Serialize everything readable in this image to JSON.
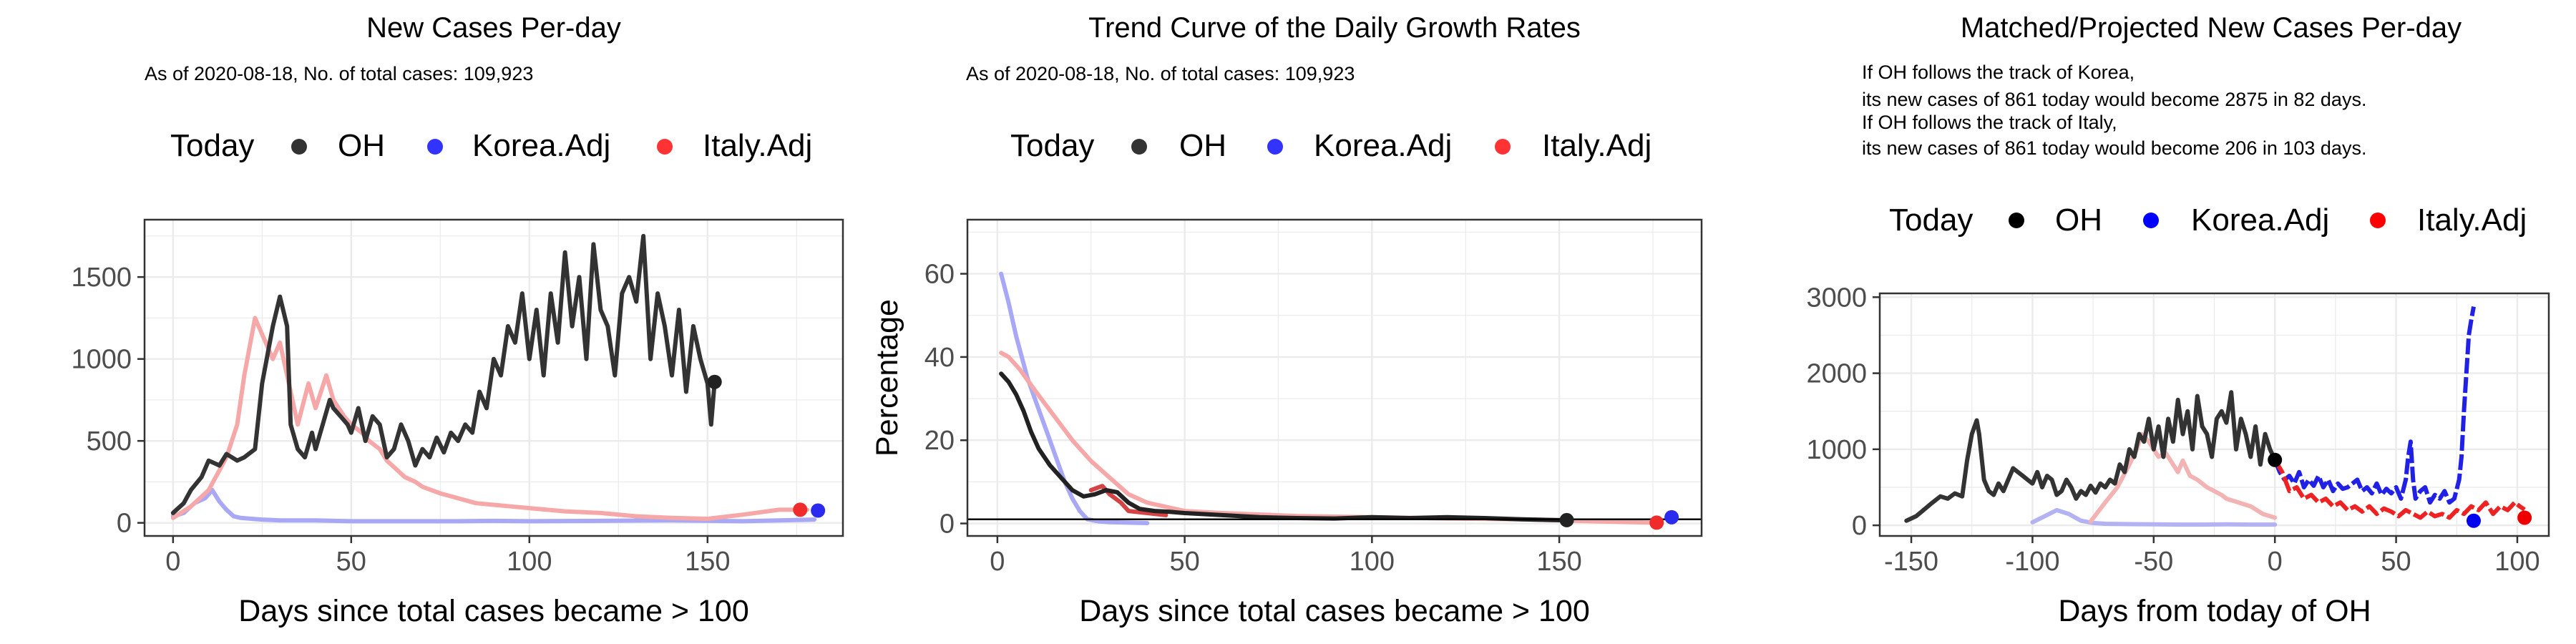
{
  "chart_data": [
    {
      "type": "line",
      "title": "New Cases Per-day",
      "subtitle": "As of 2020-08-18, No. of total cases: 109,923",
      "xlabel": "Days since total cases became > 100",
      "ylabel": "",
      "xlim": [
        -8,
        188
      ],
      "ylim": [
        -80,
        1850
      ],
      "xticks": [
        0,
        50,
        100,
        150
      ],
      "yticks": [
        0,
        500,
        1000,
        1500
      ],
      "grid": true,
      "legend": {
        "position": "top",
        "title": "Today",
        "entries": [
          "OH",
          "Korea.Adj",
          "Italy.Adj"
        ]
      },
      "series": [
        {
          "name": "Korea.Adj",
          "color": "#a8a8f6",
          "x": [
            0,
            3,
            6,
            9,
            11,
            13,
            15,
            17,
            19,
            22,
            25,
            30,
            40,
            50,
            60,
            70,
            80,
            90,
            100,
            120,
            140,
            160,
            170,
            180
          ],
          "y": [
            40,
            60,
            120,
            150,
            200,
            130,
            80,
            40,
            30,
            25,
            20,
            15,
            15,
            10,
            10,
            10,
            10,
            12,
            10,
            12,
            15,
            10,
            15,
            20
          ]
        },
        {
          "name": "Italy.Adj",
          "color": "#f6a8a8",
          "x": [
            0,
            5,
            10,
            15,
            18,
            20,
            23,
            25,
            28,
            30,
            33,
            35,
            38,
            40,
            43,
            45,
            48,
            50,
            53,
            55,
            58,
            60,
            63,
            65,
            68,
            70,
            75,
            80,
            85,
            90,
            95,
            100,
            110,
            120,
            130,
            140,
            150,
            160,
            170,
            178
          ],
          "y": [
            30,
            100,
            200,
            400,
            600,
            900,
            1250,
            1150,
            1000,
            1100,
            800,
            600,
            850,
            700,
            900,
            750,
            650,
            600,
            550,
            500,
            450,
            380,
            320,
            280,
            250,
            220,
            180,
            150,
            120,
            110,
            100,
            90,
            70,
            60,
            40,
            30,
            25,
            50,
            80,
            80
          ]
        },
        {
          "name": "OH",
          "color": "#333333",
          "x": [
            0,
            3,
            5,
            8,
            10,
            13,
            15,
            18,
            20,
            23,
            25,
            28,
            30,
            32,
            33,
            35,
            37,
            39,
            40,
            42,
            44,
            45,
            47,
            49,
            50,
            52,
            54,
            56,
            58,
            60,
            62,
            64,
            66,
            68,
            70,
            72,
            74,
            76,
            78,
            80,
            82,
            84,
            86,
            88,
            90,
            92,
            94,
            96,
            98,
            100,
            102,
            104,
            106,
            108,
            110,
            112,
            114,
            116,
            118,
            120,
            122,
            124,
            126,
            128,
            130,
            132,
            134,
            136,
            138,
            140,
            142,
            144,
            146,
            148,
            150,
            151,
            152
          ],
          "y": [
            60,
            120,
            200,
            280,
            380,
            350,
            420,
            380,
            400,
            450,
            850,
            1200,
            1380,
            1200,
            600,
            450,
            400,
            550,
            450,
            600,
            750,
            700,
            650,
            600,
            550,
            700,
            500,
            650,
            600,
            400,
            450,
            600,
            500,
            350,
            450,
            400,
            520,
            430,
            550,
            500,
            600,
            550,
            800,
            700,
            1000,
            900,
            1200,
            1100,
            1400,
            1000,
            1300,
            900,
            1400,
            1100,
            1650,
            1200,
            1500,
            1000,
            1700,
            1300,
            1200,
            900,
            1400,
            1500,
            1350,
            1750,
            1000,
            1400,
            1200,
            900,
            1300,
            800,
            1200,
            1000,
            850,
            600,
            860
          ]
        }
      ],
      "today_points": [
        {
          "series": "Italy.Adj",
          "x": 176,
          "y": 80
        },
        {
          "series": "Korea.Adj",
          "x": 181,
          "y": 75
        },
        {
          "series": "OH",
          "x": 152,
          "y": 860
        }
      ]
    },
    {
      "type": "line",
      "title": "Trend Curve of the Daily Growth Rates",
      "subtitle": "As of 2020-08-18, No. of total cases: 109,923",
      "xlabel": "Days since total cases became > 100",
      "ylabel": "Percentage",
      "xlim": [
        -8,
        188
      ],
      "ylim": [
        -3,
        73
      ],
      "xticks": [
        0,
        50,
        100,
        150
      ],
      "yticks": [
        0,
        20,
        40,
        60
      ],
      "grid": true,
      "hline": 1,
      "legend": {
        "position": "top",
        "title": "Today",
        "entries": [
          "OH",
          "Korea.Adj",
          "Italy.Adj"
        ]
      },
      "series": [
        {
          "name": "Korea.Adj",
          "color": "#a8a8f6",
          "x": [
            1,
            3,
            5,
            8,
            10,
            12,
            14,
            16,
            18,
            20,
            22,
            24,
            27,
            30,
            35,
            40
          ],
          "y": [
            60,
            53,
            45,
            35,
            30,
            25,
            20,
            15,
            10,
            6,
            3,
            1,
            0.5,
            0.3,
            0.2,
            0.1
          ]
        },
        {
          "name": "Italy.Adj",
          "color": "#f6a8a8",
          "x": [
            1,
            3,
            6,
            10,
            15,
            20,
            25,
            30,
            35,
            40,
            50,
            60,
            80,
            100,
            120,
            140,
            160,
            175
          ],
          "y": [
            41,
            40,
            37,
            32,
            26,
            20,
            15,
            11,
            7,
            5,
            3,
            2.5,
            1.8,
            1.5,
            1.2,
            1,
            0.5,
            0.2
          ]
        },
        {
          "name": "Italy.Adj",
          "color": "#d44444",
          "x": [
            25,
            28,
            30,
            33,
            35,
            40,
            45
          ],
          "y": [
            8,
            9,
            7,
            5,
            3,
            2.5,
            2
          ]
        },
        {
          "name": "OH",
          "color": "#222222",
          "x": [
            1,
            3,
            5,
            7,
            9,
            11,
            14,
            17,
            20,
            23,
            26,
            29,
            32,
            35,
            38,
            42,
            46,
            50,
            60,
            70,
            80,
            90,
            100,
            110,
            120,
            130,
            140,
            150,
            152
          ],
          "y": [
            36,
            34,
            31,
            27,
            22,
            18,
            14,
            11,
            8,
            6.5,
            7,
            8,
            7.5,
            5,
            3.5,
            3,
            2.8,
            2.5,
            2,
            1.5,
            1.3,
            1.2,
            1.5,
            1.3,
            1.5,
            1.3,
            1,
            0.8,
            0.8
          ]
        }
      ],
      "today_points": [
        {
          "series": "OH",
          "x": 152,
          "y": 0.8
        },
        {
          "series": "Korea.Adj",
          "x": 180,
          "y": 1.5
        },
        {
          "series": "Italy.Adj",
          "x": 176,
          "y": 0.2
        }
      ]
    },
    {
      "type": "line",
      "title": "Matched/Projected New Cases Per-day",
      "annotations": [
        "If OH follows the track of Korea,",
        "its new cases of 861 today would become 2875 in 82 days.",
        "If OH follows the track of Italy,",
        "its new cases of 861 today would become 206 in 103 days."
      ],
      "xlabel": "Days from today of OH",
      "ylabel": "",
      "xlim": [
        -163,
        113
      ],
      "ylim": [
        -140,
        3050
      ],
      "xticks": [
        -150,
        -100,
        -50,
        0,
        50,
        100
      ],
      "yticks": [
        0,
        1000,
        2000,
        3000
      ],
      "grid": true,
      "legend": {
        "position": "top",
        "title": "Today",
        "entries": [
          "OH",
          "Korea.Adj",
          "Italy.Adj"
        ]
      },
      "series": [
        {
          "name": "Korea.Adj",
          "color": "#b3b3f3",
          "x": [
            -100,
            -95,
            -90,
            -85,
            -80,
            -75,
            -70,
            -60,
            -50,
            -40,
            -30,
            -20,
            -10,
            0
          ],
          "y": [
            40,
            120,
            200,
            150,
            60,
            30,
            20,
            15,
            12,
            10,
            10,
            12,
            10,
            10
          ]
        },
        {
          "name": "Italy.Adj",
          "color": "#f3b3b3",
          "x": [
            -76,
            -70,
            -65,
            -60,
            -57,
            -55,
            -52,
            -50,
            -48,
            -45,
            -42,
            -40,
            -38,
            -35,
            -32,
            -30,
            -28,
            -25,
            -22,
            -20,
            -15,
            -10,
            -5,
            0
          ],
          "y": [
            50,
            300,
            500,
            800,
            1000,
            1200,
            1100,
            1000,
            900,
            950,
            800,
            700,
            850,
            650,
            600,
            550,
            500,
            450,
            400,
            350,
            300,
            250,
            150,
            100
          ]
        },
        {
          "name": "OH",
          "color": "#333333",
          "x": [
            -152,
            -148,
            -145,
            -142,
            -138,
            -135,
            -132,
            -129,
            -127,
            -125,
            -123,
            -122,
            -120,
            -118,
            -116,
            -114,
            -112,
            -110,
            -108,
            -106,
            -104,
            -102,
            -100,
            -98,
            -96,
            -94,
            -92,
            -90,
            -88,
            -86,
            -84,
            -82,
            -80,
            -78,
            -76,
            -74,
            -72,
            -70,
            -68,
            -66,
            -64,
            -62,
            -60,
            -58,
            -56,
            -54,
            -52,
            -50,
            -48,
            -46,
            -44,
            -42,
            -40,
            -38,
            -36,
            -34,
            -32,
            -30,
            -28,
            -26,
            -24,
            -22,
            -20,
            -18,
            -16,
            -14,
            -12,
            -10,
            -8,
            -6,
            -4,
            -2,
            0
          ],
          "y": [
            60,
            120,
            200,
            280,
            380,
            350,
            420,
            380,
            850,
            1200,
            1380,
            1200,
            600,
            450,
            400,
            550,
            450,
            600,
            750,
            700,
            650,
            600,
            550,
            700,
            500,
            650,
            600,
            400,
            450,
            600,
            500,
            350,
            450,
            400,
            520,
            430,
            550,
            500,
            600,
            550,
            800,
            700,
            1000,
            900,
            1200,
            1100,
            1400,
            1000,
            1300,
            900,
            1400,
            1100,
            1650,
            1200,
            1500,
            1000,
            1700,
            1300,
            1200,
            900,
            1400,
            1500,
            1350,
            1750,
            1000,
            1400,
            1200,
            900,
            1300,
            800,
            1200,
            1000,
            860
          ]
        },
        {
          "name": "Korea.Adj",
          "color": "#2020e6",
          "dashed": true,
          "x": [
            0,
            2,
            4,
            6,
            8,
            10,
            12,
            14,
            16,
            18,
            20,
            22,
            24,
            26,
            28,
            30,
            32,
            34,
            36,
            38,
            40,
            42,
            44,
            46,
            48,
            50,
            52,
            54,
            55,
            56,
            57,
            58,
            60,
            62,
            64,
            66,
            68,
            70,
            72,
            74,
            76,
            77,
            78,
            79,
            80,
            81,
            82
          ],
          "y": [
            860,
            700,
            600,
            650,
            550,
            700,
            500,
            600,
            520,
            650,
            500,
            600,
            450,
            550,
            480,
            500,
            550,
            600,
            450,
            500,
            420,
            550,
            400,
            480,
            420,
            500,
            350,
            600,
            900,
            1100,
            600,
            350,
            450,
            500,
            300,
            400,
            350,
            450,
            300,
            350,
            600,
            900,
            1500,
            2000,
            2500,
            2700,
            2875
          ]
        },
        {
          "name": "Italy.Adj",
          "color": "#ee2222",
          "dashed": true,
          "x": [
            0,
            3,
            6,
            9,
            12,
            15,
            18,
            21,
            24,
            27,
            30,
            33,
            36,
            39,
            42,
            45,
            48,
            51,
            54,
            57,
            60,
            63,
            66,
            69,
            72,
            75,
            78,
            81,
            84,
            87,
            90,
            93,
            96,
            99,
            101,
            103
          ],
          "y": [
            860,
            700,
            450,
            500,
            350,
            400,
            300,
            350,
            250,
            300,
            200,
            250,
            180,
            250,
            150,
            220,
            180,
            120,
            200,
            150,
            100,
            180,
            120,
            150,
            100,
            200,
            150,
            250,
            200,
            300,
            150,
            250,
            200,
            300,
            250,
            206
          ]
        }
      ],
      "today_points": [
        {
          "series": "OH",
          "x": 0,
          "y": 860
        },
        {
          "series": "Korea.Adj",
          "x": 82,
          "y": 60
        },
        {
          "series": "Italy.Adj",
          "x": 103,
          "y": 100
        }
      ]
    }
  ],
  "colors": {
    "OH": "#000000",
    "Korea.Adj": "#0000ff",
    "Italy.Adj": "#ff0000",
    "grid": "#ebebeb",
    "frame": "#333333"
  }
}
